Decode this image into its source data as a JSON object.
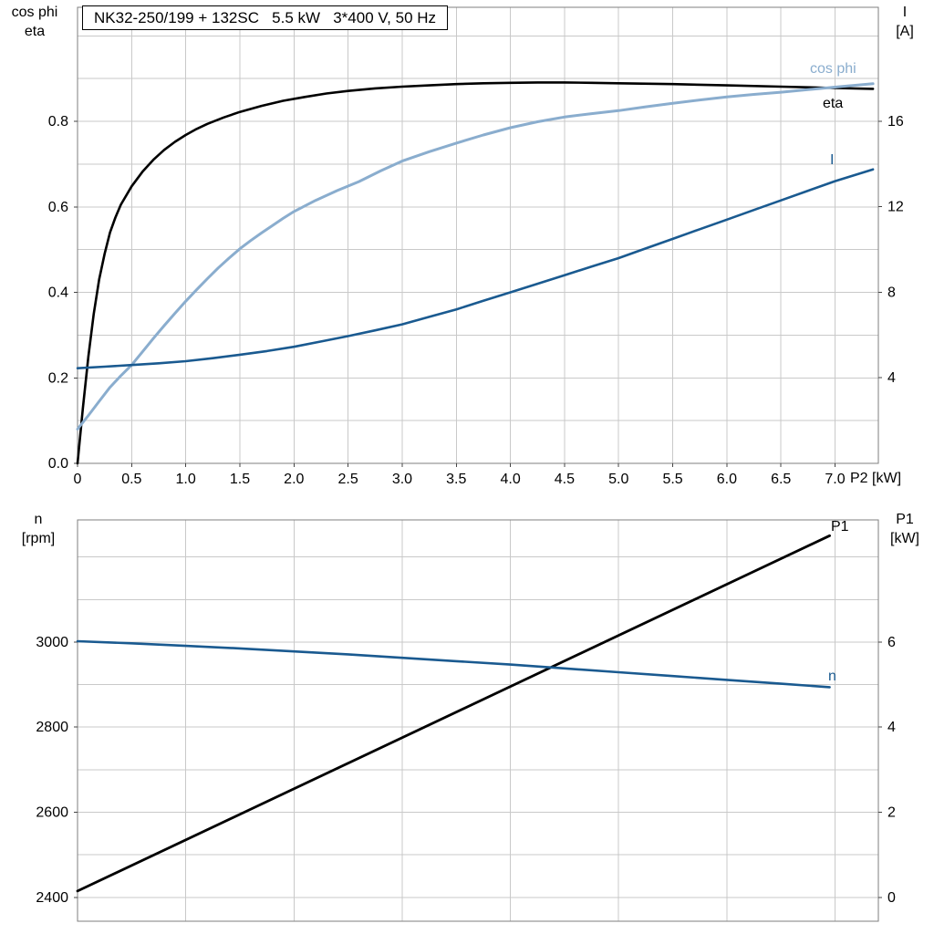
{
  "title_box": "NK32-250/199 + 132SC   5.5 kW   3*400 V, 50 Hz",
  "axis_corner_labels": {
    "top_left_line1": "cos phi",
    "top_left_line2": "eta",
    "top_right_line1": "I",
    "top_right_line2": "[A]",
    "x_axis_label": "P2 [kW]",
    "bottom_left_line1": "n",
    "bottom_left_line2": "[rpm]",
    "bottom_right_line1": "P1",
    "bottom_right_line2": "[kW]"
  },
  "colors": {
    "grid": "#c9c9c9",
    "frame": "#7f7f7f",
    "tick": "#444444",
    "text": "#000000",
    "black_curve": "#000000",
    "light_blue": "#8aadce",
    "dark_blue": "#1a5a90"
  },
  "chart_data": [
    {
      "type": "line",
      "title": "Motor curves: cos phi, eta and current I versus shaft power P2",
      "xlabel": "P2 [kW]",
      "x_range": [
        0,
        7.4
      ],
      "x_grid_step": 0.5,
      "x_ticks": {
        "values": [
          0,
          0.5,
          1.0,
          1.5,
          2.0,
          2.5,
          3.0,
          3.5,
          4.0,
          4.5,
          5.0,
          5.5,
          6.0,
          6.5,
          7.0
        ],
        "labels": [
          "0",
          "0.5",
          "1.0",
          "1.5",
          "2.0",
          "2.5",
          "3.0",
          "3.5",
          "4.0",
          "4.5",
          "5.0",
          "5.5",
          "6.0",
          "6.5",
          "7.0"
        ]
      },
      "left_axis": {
        "label": "cos phi / eta",
        "range": [
          0,
          1.0667
        ],
        "grid_step": 0.1,
        "tick_values": [
          0,
          0.2,
          0.4,
          0.6,
          0.8
        ],
        "tick_labels": [
          "0.0",
          "0.2",
          "0.4",
          "0.6",
          "0.8"
        ]
      },
      "right_axis": {
        "label": "I [A]",
        "range": [
          0,
          21.33
        ],
        "tick_values": [
          4,
          8,
          12,
          16
        ],
        "tick_labels": [
          "4",
          "8",
          "12",
          "16"
        ]
      },
      "series": [
        {
          "name": "eta",
          "axis": "left",
          "color": "#000000",
          "width": 2.6,
          "points": [
            [
              0,
              0
            ],
            [
              0.05,
              0.13
            ],
            [
              0.1,
              0.25
            ],
            [
              0.15,
              0.35
            ],
            [
              0.2,
              0.43
            ],
            [
              0.25,
              0.49
            ],
            [
              0.3,
              0.54
            ],
            [
              0.35,
              0.575
            ],
            [
              0.4,
              0.605
            ],
            [
              0.5,
              0.648
            ],
            [
              0.6,
              0.682
            ],
            [
              0.7,
              0.71
            ],
            [
              0.8,
              0.733
            ],
            [
              0.9,
              0.752
            ],
            [
              1.0,
              0.768
            ],
            [
              1.1,
              0.782
            ],
            [
              1.2,
              0.794
            ],
            [
              1.35,
              0.809
            ],
            [
              1.5,
              0.822
            ],
            [
              1.7,
              0.836
            ],
            [
              1.9,
              0.848
            ],
            [
              2.1,
              0.857
            ],
            [
              2.3,
              0.865
            ],
            [
              2.5,
              0.871
            ],
            [
              2.75,
              0.877
            ],
            [
              3.0,
              0.881
            ],
            [
              3.25,
              0.884
            ],
            [
              3.5,
              0.887
            ],
            [
              3.75,
              0.889
            ],
            [
              4.0,
              0.89
            ],
            [
              4.25,
              0.891
            ],
            [
              4.5,
              0.891
            ],
            [
              4.75,
              0.89
            ],
            [
              5.0,
              0.889
            ],
            [
              5.5,
              0.887
            ],
            [
              6.0,
              0.884
            ],
            [
              6.5,
              0.881
            ],
            [
              7.0,
              0.878
            ],
            [
              7.35,
              0.876
            ]
          ]
        },
        {
          "name": "cos phi",
          "axis": "left",
          "color": "#8aadce",
          "width": 3,
          "points": [
            [
              0,
              0.08
            ],
            [
              0.1,
              0.112
            ],
            [
              0.2,
              0.145
            ],
            [
              0.3,
              0.178
            ],
            [
              0.4,
              0.205
            ],
            [
              0.5,
              0.23
            ],
            [
              0.6,
              0.261
            ],
            [
              0.7,
              0.292
            ],
            [
              0.8,
              0.322
            ],
            [
              0.9,
              0.351
            ],
            [
              1.0,
              0.379
            ],
            [
              1.1,
              0.406
            ],
            [
              1.2,
              0.432
            ],
            [
              1.3,
              0.457
            ],
            [
              1.4,
              0.48
            ],
            [
              1.5,
              0.502
            ],
            [
              1.6,
              0.521
            ],
            [
              1.7,
              0.539
            ],
            [
              1.8,
              0.556
            ],
            [
              1.9,
              0.573
            ],
            [
              2.0,
              0.589
            ],
            [
              2.2,
              0.615
            ],
            [
              2.4,
              0.638
            ],
            [
              2.6,
              0.659
            ],
            [
              2.8,
              0.684
            ],
            [
              3.0,
              0.707
            ],
            [
              3.25,
              0.729
            ],
            [
              3.5,
              0.749
            ],
            [
              3.75,
              0.768
            ],
            [
              4.0,
              0.785
            ],
            [
              4.25,
              0.799
            ],
            [
              4.5,
              0.81
            ],
            [
              4.75,
              0.818
            ],
            [
              5.0,
              0.825
            ],
            [
              5.25,
              0.834
            ],
            [
              5.5,
              0.842
            ],
            [
              5.75,
              0.85
            ],
            [
              6.0,
              0.857
            ],
            [
              6.25,
              0.863
            ],
            [
              6.5,
              0.868
            ],
            [
              6.75,
              0.874
            ],
            [
              7.0,
              0.88
            ],
            [
              7.35,
              0.888
            ]
          ]
        },
        {
          "name": "I",
          "axis": "right",
          "color": "#1a5a90",
          "width": 2.6,
          "points": [
            [
              0,
              4.45
            ],
            [
              0.25,
              4.52
            ],
            [
              0.5,
              4.6
            ],
            [
              0.75,
              4.68
            ],
            [
              1.0,
              4.78
            ],
            [
              1.25,
              4.92
            ],
            [
              1.5,
              5.08
            ],
            [
              1.75,
              5.25
            ],
            [
              2.0,
              5.45
            ],
            [
              2.25,
              5.7
            ],
            [
              2.5,
              5.95
            ],
            [
              2.75,
              6.22
            ],
            [
              3.0,
              6.5
            ],
            [
              3.25,
              6.85
            ],
            [
              3.5,
              7.2
            ],
            [
              3.75,
              7.6
            ],
            [
              4.0,
              8.0
            ],
            [
              4.25,
              8.4
            ],
            [
              4.5,
              8.8
            ],
            [
              4.75,
              9.2
            ],
            [
              5.0,
              9.6
            ],
            [
              5.25,
              10.05
            ],
            [
              5.5,
              10.5
            ],
            [
              5.75,
              10.95
            ],
            [
              6.0,
              11.4
            ],
            [
              6.25,
              11.85
            ],
            [
              6.5,
              12.3
            ],
            [
              6.75,
              12.75
            ],
            [
              7.0,
              13.2
            ],
            [
              7.35,
              13.75
            ]
          ]
        }
      ]
    },
    {
      "type": "line",
      "title": "Speed n and input power P1 versus shaft power P2",
      "xlabel": "",
      "x_range": [
        0,
        7.4
      ],
      "x_grid_step": 1.0,
      "x_ticks": {
        "values": [],
        "labels": []
      },
      "left_axis": {
        "label": "n [rpm]",
        "range": [
          2344,
          3287
        ],
        "grid_step": 100,
        "tick_values": [
          2400,
          2600,
          2800,
          3000
        ],
        "tick_labels": [
          "2400",
          "2600",
          "2800",
          "3000"
        ]
      },
      "right_axis": {
        "label": "P1 [kW]",
        "range": [
          -0.56,
          8.87
        ],
        "tick_values": [
          0,
          2,
          4,
          6
        ],
        "tick_labels": [
          "0",
          "2",
          "4",
          "6"
        ]
      },
      "series": [
        {
          "name": "P1",
          "axis": "right",
          "color": "#000000",
          "width": 2.8,
          "points": [
            [
              0,
              0.15
            ],
            [
              6.95,
              8.5
            ]
          ]
        },
        {
          "name": "n",
          "axis": "left",
          "color": "#1a5a90",
          "width": 2.6,
          "points": [
            [
              0,
              3002
            ],
            [
              0.5,
              2997
            ],
            [
              1.0,
              2991
            ],
            [
              1.5,
              2985
            ],
            [
              2.0,
              2978
            ],
            [
              2.5,
              2971
            ],
            [
              3.0,
              2963
            ],
            [
              3.5,
              2955
            ],
            [
              4.0,
              2947
            ],
            [
              4.5,
              2938
            ],
            [
              5.0,
              2929
            ],
            [
              5.5,
              2920
            ],
            [
              6.0,
              2911
            ],
            [
              6.5,
              2902
            ],
            [
              6.95,
              2894
            ]
          ]
        }
      ]
    }
  ]
}
